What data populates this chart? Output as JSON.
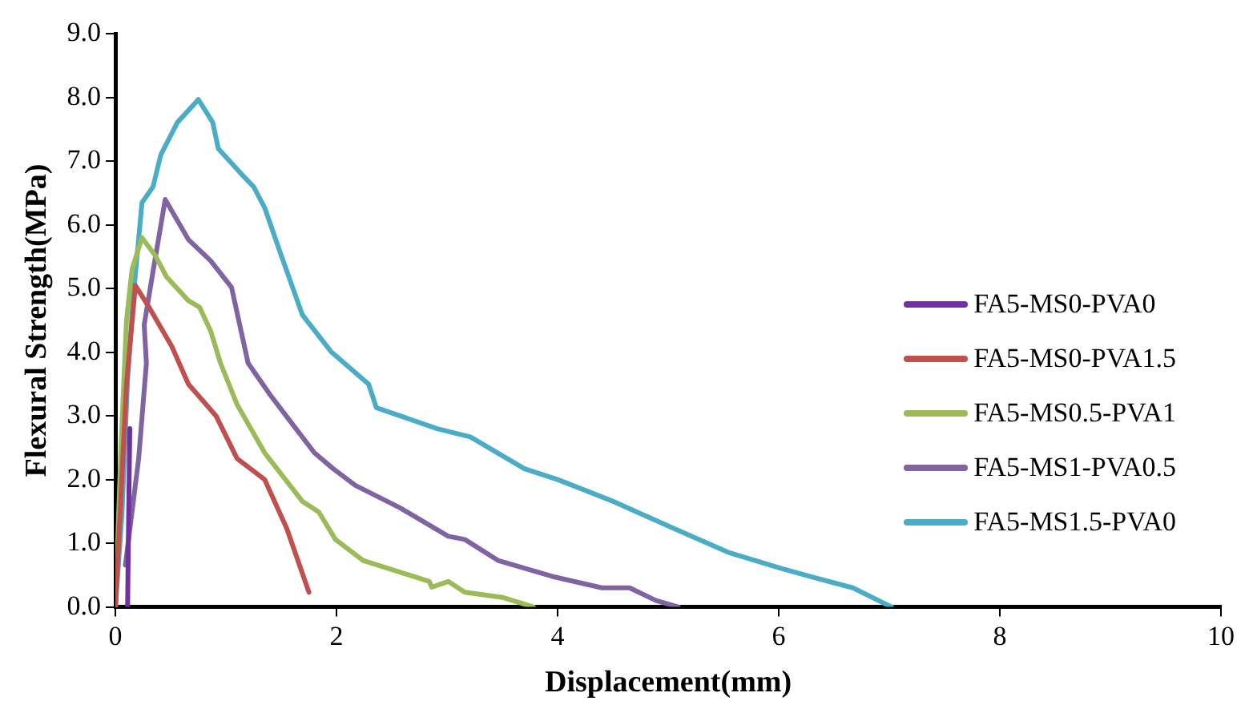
{
  "chart_data": {
    "type": "line",
    "xlabel": "Displacement(mm)",
    "ylabel": "Flexural Strength(MPa)",
    "xlim": [
      0,
      10
    ],
    "xticks": [
      0,
      2,
      4,
      6,
      8,
      10
    ],
    "ylim": [
      0,
      9
    ],
    "yticks": [
      {
        "value": 0,
        "label": "0.0"
      },
      {
        "value": 1,
        "label": "1.0"
      },
      {
        "value": 2,
        "label": "2.0"
      },
      {
        "value": 3,
        "label": "3.0"
      },
      {
        "value": 4,
        "label": "4.0"
      },
      {
        "value": 5,
        "label": "5.0"
      },
      {
        "value": 6,
        "label": "6.0"
      },
      {
        "value": 7,
        "label": "7.0"
      },
      {
        "value": 8,
        "label": "8.0"
      },
      {
        "value": 9,
        "label": "9.0"
      }
    ],
    "grid": false,
    "legend": "right",
    "marker": "none",
    "line_style": "solid",
    "series": [
      {
        "name": "FA5-MS0-PVA0",
        "color": "#7030a0",
        "x": [
          0.11,
          0.12,
          0.13
        ],
        "values": [
          0,
          1.5,
          2.8
        ]
      },
      {
        "name": "FA5-MS0-PVA1.5",
        "color": "#c0504d",
        "x": [
          0,
          0.1,
          0.18,
          0.31,
          0.51,
          0.66,
          0.91,
          1.1,
          1.35,
          1.55,
          1.75
        ],
        "values": [
          0,
          3.5,
          5.05,
          4.69,
          4.09,
          3.5,
          3.0,
          2.33,
          2.0,
          1.23,
          0.23
        ]
      },
      {
        "name": "FA5-MS0.5-PVA1",
        "color": "#9bbb59",
        "x": [
          0,
          0.05,
          0.1,
          0.15,
          0.24,
          0.36,
          0.46,
          0.66,
          0.76,
          0.86,
          0.95,
          1.1,
          1.35,
          1.69,
          1.84,
          1.99,
          2.24,
          2.84,
          2.86,
          3.01,
          3.16,
          3.5,
          3.78
        ],
        "values": [
          0,
          2.5,
          4.5,
          5.3,
          5.8,
          5.52,
          5.19,
          4.81,
          4.71,
          4.34,
          3.83,
          3.18,
          2.42,
          1.66,
          1.49,
          1.06,
          0.73,
          0.4,
          0.31,
          0.4,
          0.23,
          0.15,
          0
        ]
      },
      {
        "name": "FA5-MS1-PVA0.5",
        "color": "#8064a2",
        "x": [
          0.09,
          0.21,
          0.28,
          0.26,
          0.34,
          0.45,
          0.66,
          0.86,
          1.05,
          1.2,
          1.4,
          1.58,
          1.8,
          1.97,
          2.17,
          2.57,
          3.01,
          3.16,
          3.46,
          3.95,
          4.4,
          4.65,
          4.89,
          5.09
        ],
        "values": [
          0.66,
          2.33,
          3.83,
          4.43,
          5.27,
          6.4,
          5.77,
          5.44,
          5.02,
          3.83,
          3.33,
          2.92,
          2.42,
          2.17,
          1.91,
          1.56,
          1.11,
          1.06,
          0.73,
          0.48,
          0.3,
          0.3,
          0.1,
          0
        ]
      },
      {
        "name": "FA5-MS1.5-PVA0",
        "color": "#4bacc6",
        "x": [
          0,
          0.06,
          0.11,
          0.16,
          0.24,
          0.34,
          0.41,
          0.56,
          0.75,
          0.88,
          0.93,
          1.15,
          1.25,
          1.35,
          1.5,
          1.69,
          1.95,
          2.29,
          2.36,
          2.91,
          3.21,
          3.7,
          4.0,
          4.5,
          5.04,
          5.54,
          6.03,
          6.28,
          6.67,
          7.02
        ],
        "values": [
          0,
          1.49,
          3.58,
          4.84,
          6.35,
          6.6,
          7.1,
          7.61,
          7.97,
          7.61,
          7.2,
          6.78,
          6.6,
          6.27,
          5.52,
          4.59,
          4.01,
          3.5,
          3.13,
          2.8,
          2.67,
          2.17,
          2.0,
          1.66,
          1.24,
          0.86,
          0.6,
          0.48,
          0.3,
          0
        ]
      }
    ]
  }
}
